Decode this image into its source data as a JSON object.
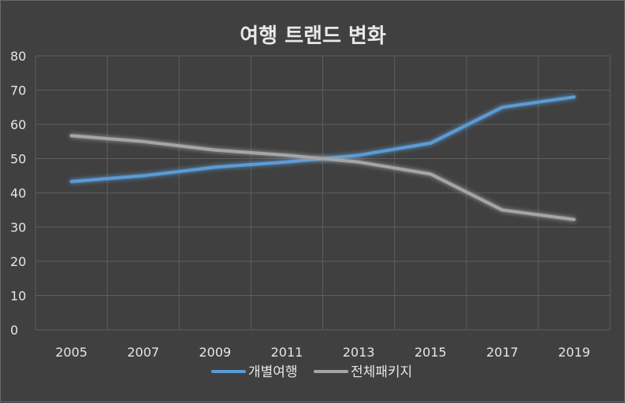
{
  "chart_data": {
    "type": "line",
    "title": "여행 트랜드 변화",
    "categories": [
      "2005",
      "2007",
      "2009",
      "2011",
      "2013",
      "2015",
      "2017",
      "2019"
    ],
    "ylim": [
      0,
      80
    ],
    "yticks": [
      "0",
      "10",
      "20",
      "30",
      "40",
      "50",
      "60",
      "70",
      "80"
    ],
    "grid": true,
    "legend_position": "bottom",
    "series": [
      {
        "name": "개별여행",
        "color": "#5b9bd5",
        "values": [
          43.3,
          45,
          47.5,
          49,
          51,
          54.5,
          65,
          68
        ]
      },
      {
        "name": "전체패키지",
        "color": "#a5a5a5",
        "values": [
          56.7,
          55,
          52.5,
          51,
          49,
          45.5,
          35,
          32.2
        ]
      }
    ]
  }
}
